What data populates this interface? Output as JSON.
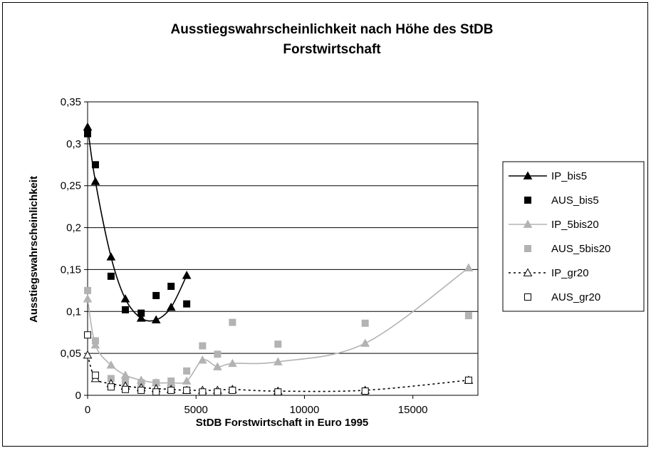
{
  "chart_data": {
    "type": "scatter",
    "title": [
      "Ausstiegswahrscheinlichkeit nach Höhe des StDB",
      "Forstwirtschaft"
    ],
    "x_label": "StDB Forstwirtschaft in Euro 1995",
    "y_label": "Ausstiegswahrscheinlichkeit",
    "xlim": [
      0,
      18000
    ],
    "ylim": [
      0,
      0.35
    ],
    "xticks": [
      0,
      5000,
      10000,
      15000
    ],
    "yticks": [
      0,
      {
        "value": 0.05,
        "label": "0,05"
      },
      {
        "value": 0.1,
        "label": "0,1"
      },
      {
        "value": 0.15,
        "label": "0,15"
      },
      {
        "value": 0.2,
        "label": "0,2"
      },
      {
        "value": 0.25,
        "label": "0,25"
      },
      {
        "value": 0.3,
        "label": "0,3"
      },
      {
        "value": 0.35,
        "label": "0,35"
      }
    ],
    "grid": true,
    "legend": "right",
    "series": [
      {
        "name": "IP_bis5",
        "color": "#000000",
        "marker": "triangle",
        "filled": true,
        "line": "solid",
        "x": [
          0,
          360,
          1080,
          1740,
          2470,
          3160,
          3850,
          4570
        ],
        "values": [
          0.32,
          0.255,
          0.165,
          0.115,
          0.092,
          0.09,
          0.105,
          0.143
        ]
      },
      {
        "name": "AUS_bis5",
        "color": "#000000",
        "marker": "square",
        "filled": true,
        "line": "none",
        "x": [
          0,
          360,
          1080,
          1740,
          2470,
          3160,
          3850,
          4570
        ],
        "values": [
          0.312,
          0.275,
          0.142,
          0.102,
          0.098,
          0.119,
          0.13,
          0.109
        ]
      },
      {
        "name": "IP_5bis20",
        "color": "#b3b3b3",
        "marker": "triangle",
        "filled": true,
        "line": "solid",
        "x": [
          0,
          360,
          1080,
          1740,
          2470,
          3160,
          3850,
          4570,
          5300,
          5990,
          6680,
          8780,
          12800,
          17570
        ],
        "values": [
          0.115,
          0.06,
          0.036,
          0.024,
          0.018,
          0.015,
          0.015,
          0.017,
          0.042,
          0.034,
          0.038,
          0.04,
          0.062,
          0.152
        ]
      },
      {
        "name": "AUS_5bis20",
        "color": "#b3b3b3",
        "marker": "square",
        "filled": true,
        "line": "none",
        "x": [
          0,
          360,
          1080,
          1740,
          2470,
          3160,
          3850,
          4570,
          5300,
          5990,
          6680,
          8780,
          12800,
          17570
        ],
        "values": [
          0.125,
          0.065,
          0.02,
          0.016,
          0.015,
          0.015,
          0.017,
          0.029,
          0.059,
          0.049,
          0.087,
          0.061,
          0.086,
          0.095
        ]
      },
      {
        "name": "IP_gr20",
        "color": "#000000",
        "marker": "triangle",
        "filled": false,
        "line": "dotted",
        "x": [
          0,
          360,
          1080,
          1740,
          2470,
          3160,
          3850,
          4570,
          5300,
          5990,
          6680,
          8780,
          12800,
          17570
        ],
        "values": [
          0.048,
          0.02,
          0.014,
          0.011,
          0.009,
          0.008,
          0.007,
          0.006,
          0.006,
          0.006,
          0.007,
          0.005,
          0.006,
          0.018
        ]
      },
      {
        "name": "AUS_gr20",
        "color": "#000000",
        "marker": "square",
        "filled": false,
        "line": "none",
        "x": [
          0,
          360,
          1080,
          1740,
          2470,
          3160,
          3850,
          4570,
          5300,
          5990,
          6680,
          8780,
          12800,
          17570
        ],
        "values": [
          0.072,
          0.024,
          0.01,
          0.007,
          0.006,
          0.004,
          0.006,
          0.006,
          0.004,
          0.004,
          0.006,
          0.004,
          0.005,
          0.018
        ]
      }
    ]
  }
}
